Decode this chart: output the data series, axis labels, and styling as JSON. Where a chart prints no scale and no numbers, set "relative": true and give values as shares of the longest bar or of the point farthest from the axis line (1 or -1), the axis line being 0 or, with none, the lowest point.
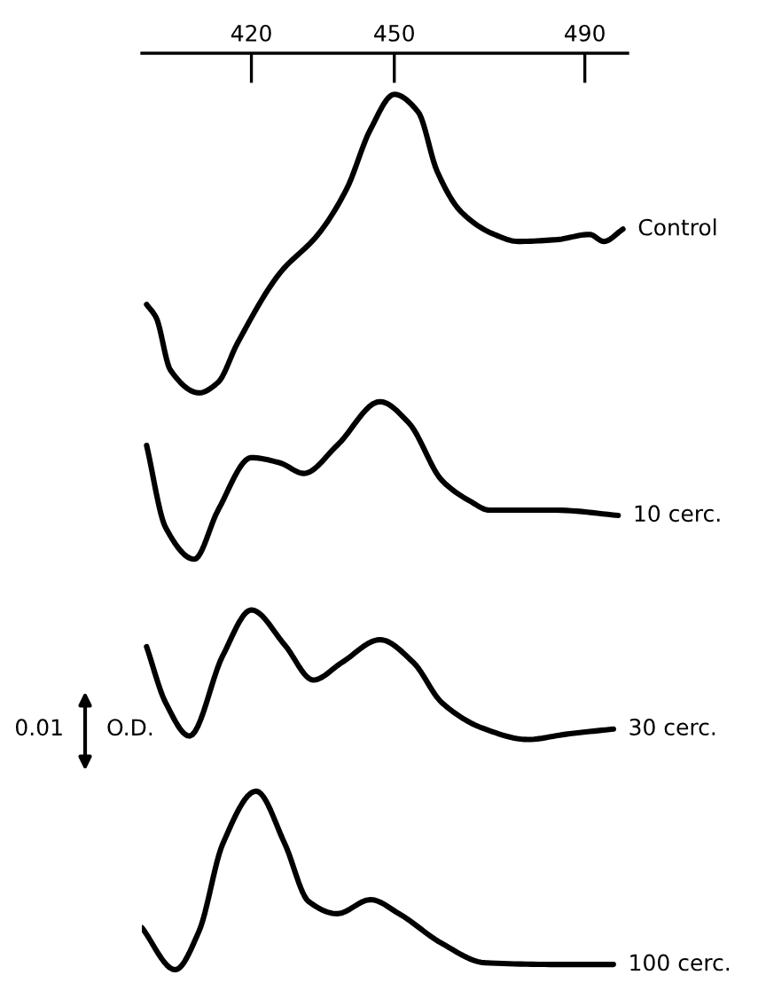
{
  "chart_data": {
    "type": "line",
    "relative": true,
    "xlim": [
      397,
      499
    ],
    "xticks": [
      420,
      450,
      490
    ],
    "annotations": [
      "0.01",
      "O.D."
    ],
    "grid": false,
    "legend": false,
    "marker": "none",
    "line_style": "solid",
    "series": [
      {
        "name": "Control",
        "color": "#000000",
        "x": [
          398,
          400,
          403,
          409,
          413,
          417,
          426,
          434,
          440,
          445,
          450,
          455,
          459,
          464,
          471,
          476,
          484,
          491,
          494,
          498
        ],
        "values": [
          0.76,
          0.745,
          0.685,
          0.659,
          0.671,
          0.715,
          0.796,
          0.84,
          0.892,
          0.96,
          1.0,
          0.98,
          0.912,
          0.866,
          0.84,
          0.832,
          0.834,
          0.84,
          0.832,
          0.846
        ]
      },
      {
        "name": "10 cerc.",
        "color": "#000000",
        "x": [
          398,
          402,
          408,
          413,
          420,
          426,
          431,
          438,
          447,
          453,
          460,
          466,
          470,
          484,
          497
        ],
        "values": [
          0.599,
          0.505,
          0.469,
          0.525,
          0.585,
          0.579,
          0.567,
          0.599,
          0.649,
          0.625,
          0.559,
          0.535,
          0.525,
          0.525,
          0.519
        ]
      },
      {
        "name": "30 cerc.",
        "color": "#000000",
        "x": [
          398,
          402,
          407,
          414,
          420,
          427,
          433,
          439,
          447,
          454,
          460,
          469,
          478,
          486,
          496
        ],
        "values": [
          0.369,
          0.305,
          0.267,
          0.359,
          0.411,
          0.371,
          0.331,
          0.351,
          0.377,
          0.351,
          0.305,
          0.275,
          0.263,
          0.269,
          0.275
        ]
      },
      {
        "name": "100 cerc.",
        "color": "#000000",
        "x": [
          397,
          404,
          409,
          414,
          421,
          427,
          432,
          438,
          445,
          451,
          460,
          469,
          484,
          496
        ],
        "values": [
          0.048,
          0.0,
          0.044,
          0.144,
          0.204,
          0.144,
          0.078,
          0.064,
          0.08,
          0.064,
          0.03,
          0.008,
          0.006,
          0.006
        ]
      }
    ]
  }
}
